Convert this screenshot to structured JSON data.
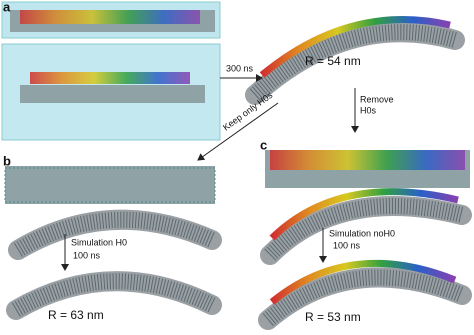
{
  "panels": {
    "a": {
      "label": "a",
      "arrow_label": "300 ns",
      "radius_label": "R = 54 nm"
    },
    "remove": {
      "line1": "Remove",
      "line2": "H0s"
    },
    "keep": {
      "label": "Keep only H0s"
    },
    "b": {
      "label": "b",
      "sim_line1": "Simulation H0",
      "sim_line2": "100 ns",
      "radius_label": "R = 63 nm"
    },
    "c": {
      "label": "c",
      "sim_line1": "Simulation noH0",
      "sim_line2": "100 ns",
      "radius_label": "R = 53 nm"
    }
  }
}
